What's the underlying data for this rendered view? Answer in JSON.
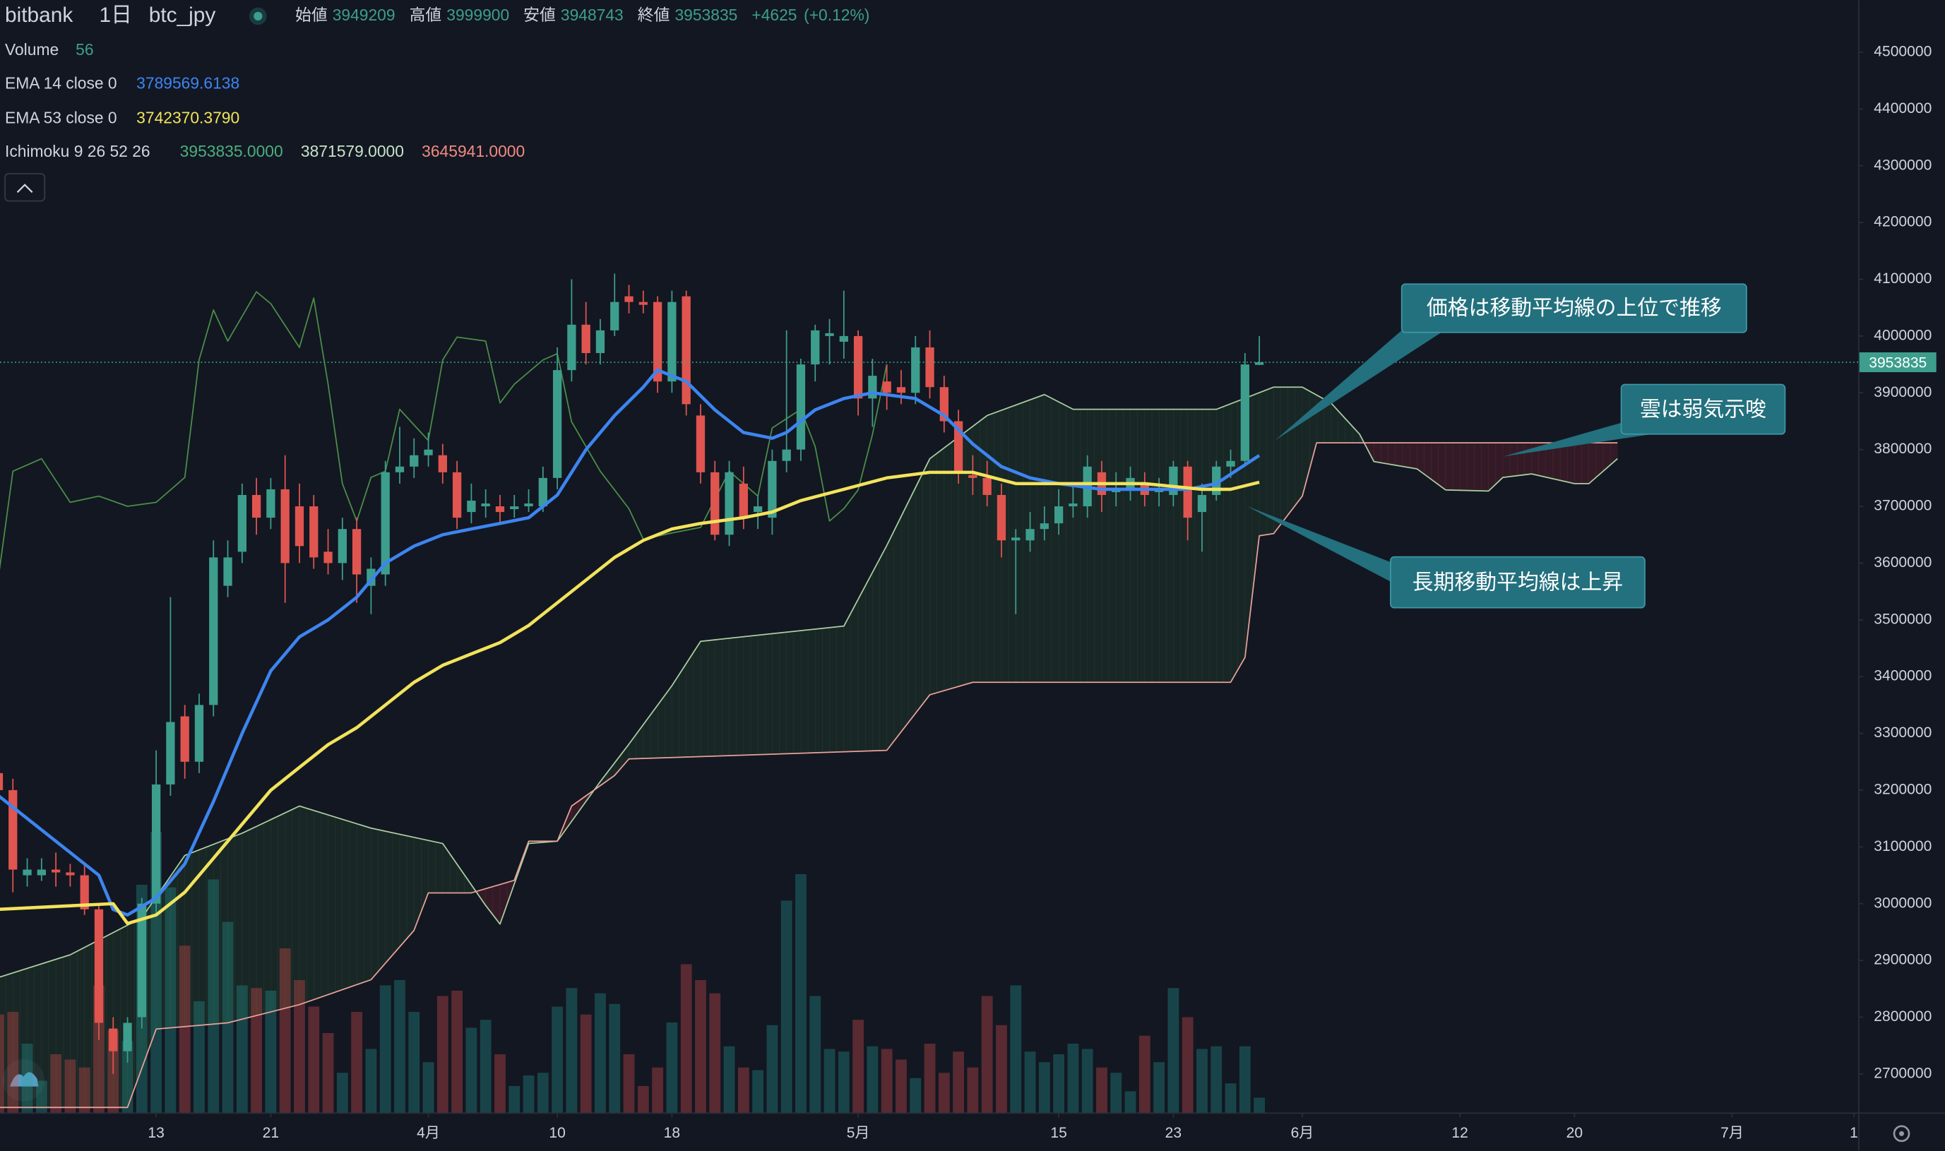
{
  "chart_data": {
    "type": "candlestick",
    "symbol": "bitbank",
    "interval": "1日",
    "pair": "btc_jpy",
    "ohlc_labels": [
      "始値",
      "高値",
      "安値",
      "終値"
    ],
    "change": {
      "value": 4625,
      "label": "+4625"
    },
    "change_percent": {
      "value": 0.12,
      "label": "(+0.12%)"
    },
    "volume_name": "Volume",
    "up_color": "#3d9e8d",
    "down_color": "#e0554f",
    "volume_colors": {
      "up": "rgba(38,166,154,0.32)",
      "down": "rgba(239,83,80,0.32)"
    },
    "xlim": [
      1.1,
      130.8
    ],
    "xticks": [
      {
        "value": 12,
        "label": "13"
      },
      {
        "value": 20,
        "label": "21"
      },
      {
        "value": 31,
        "label": "4月"
      },
      {
        "value": 40,
        "label": "10"
      },
      {
        "value": 48,
        "label": "18"
      },
      {
        "value": 61,
        "label": "5月"
      },
      {
        "value": 75,
        "label": "15"
      },
      {
        "value": 83,
        "label": "23"
      },
      {
        "value": 92,
        "label": "6月"
      },
      {
        "value": 103,
        "label": "12"
      },
      {
        "value": 111,
        "label": "20"
      },
      {
        "value": 122,
        "label": "7月"
      },
      {
        "value": 130.5,
        "label": "1"
      }
    ],
    "ylim": [
      2632000,
      4592000
    ],
    "yticks": [
      2700000,
      2800000,
      2900000,
      3000000,
      3100000,
      3200000,
      3300000,
      3400000,
      3500000,
      3600000,
      3700000,
      3800000,
      3900000,
      4000000,
      4100000,
      4200000,
      4300000,
      4400000,
      4500000
    ],
    "volume_ylim": [
      0,
      4200
    ],
    "grid": false,
    "x": [
      1,
      2,
      3,
      4,
      5,
      6,
      7,
      8,
      9,
      10,
      11,
      12,
      13,
      14,
      15,
      16,
      17,
      18,
      19,
      20,
      21,
      22,
      23,
      24,
      25,
      26,
      27,
      28,
      29,
      30,
      31,
      32,
      33,
      34,
      35,
      36,
      37,
      38,
      39,
      40,
      41,
      42,
      43,
      44,
      45,
      46,
      47,
      48,
      49,
      50,
      51,
      52,
      53,
      54,
      55,
      56,
      57,
      58,
      59,
      60,
      61,
      62,
      63,
      64,
      65,
      66,
      67,
      68,
      69,
      70,
      71,
      72,
      73,
      74,
      75,
      76,
      77,
      78,
      79,
      80,
      81,
      82,
      83,
      84,
      85,
      86,
      87,
      88,
      89
    ],
    "open": [
      3230000,
      3200000,
      3050000,
      3050000,
      3060000,
      3055000,
      3050000,
      2990000,
      2780000,
      2740000,
      2800000,
      3000000,
      3210000,
      3330000,
      3250000,
      3350000,
      3560000,
      3620000,
      3720000,
      3680000,
      3730000,
      3700000,
      3700000,
      3620000,
      3600000,
      3660000,
      3560000,
      3580000,
      3760000,
      3770000,
      3790000,
      3790000,
      3760000,
      3690000,
      3700000,
      3700000,
      3695000,
      3700000,
      3700000,
      3750000,
      3940000,
      4020000,
      3970000,
      4010000,
      4070000,
      4060000,
      4060000,
      3920000,
      4070000,
      3860000,
      3760000,
      3650000,
      3740000,
      3690000,
      3680000,
      3780000,
      3800000,
      3950000,
      4000000,
      3990000,
      4000000,
      3890000,
      3920000,
      3910000,
      3900000,
      3980000,
      3910000,
      3850000,
      3755000,
      3750000,
      3720000,
      3640000,
      3640000,
      3660000,
      3670000,
      3700000,
      3700000,
      3760000,
      3725000,
      3730000,
      3740000,
      3725000,
      3720000,
      3770000,
      3690000,
      3720000,
      3770000,
      3780000,
      3949209
    ],
    "high": [
      3250000,
      3220000,
      3080000,
      3080000,
      3090000,
      3070000,
      3070000,
      3000000,
      2800000,
      2800000,
      3010000,
      3270000,
      3540000,
      3350000,
      3370000,
      3640000,
      3640000,
      3740000,
      3750000,
      3750000,
      3790000,
      3740000,
      3720000,
      3660000,
      3680000,
      3680000,
      3610000,
      3780000,
      3840000,
      3820000,
      3830000,
      3810000,
      3780000,
      3740000,
      3730000,
      3720000,
      3720000,
      3730000,
      3770000,
      3980000,
      4100000,
      4060000,
      4030000,
      4110000,
      4090000,
      4080000,
      4070000,
      4080000,
      4080000,
      3880000,
      3780000,
      3780000,
      3770000,
      3720000,
      3800000,
      4010000,
      3960000,
      4020000,
      4030000,
      4080000,
      4010000,
      3960000,
      3950000,
      3940000,
      4000000,
      4010000,
      3930000,
      3870000,
      3790000,
      3780000,
      3740000,
      3660000,
      3690000,
      3700000,
      3730000,
      3740000,
      3790000,
      3780000,
      3760000,
      3770000,
      3760000,
      3750000,
      3780000,
      3780000,
      3740000,
      3780000,
      3800000,
      3970000,
      3999900
    ],
    "low": [
      3190000,
      3020000,
      3030000,
      3040000,
      3030000,
      3030000,
      2980000,
      2760000,
      2700000,
      2720000,
      2780000,
      2980000,
      3190000,
      3220000,
      3230000,
      3330000,
      3540000,
      3600000,
      3650000,
      3660000,
      3530000,
      3600000,
      3590000,
      3580000,
      3570000,
      3530000,
      3510000,
      3560000,
      3740000,
      3750000,
      3770000,
      3740000,
      3660000,
      3670000,
      3680000,
      3670000,
      3680000,
      3690000,
      3690000,
      3730000,
      3920000,
      3950000,
      3950000,
      4000000,
      4040000,
      4040000,
      3900000,
      3900000,
      3860000,
      3740000,
      3640000,
      3630000,
      3660000,
      3660000,
      3650000,
      3760000,
      3780000,
      3920000,
      3950000,
      3960000,
      3860000,
      3840000,
      3870000,
      3880000,
      3880000,
      3890000,
      3830000,
      3740000,
      3720000,
      3700000,
      3610000,
      3510000,
      3620000,
      3640000,
      3650000,
      3680000,
      3680000,
      3690000,
      3700000,
      3710000,
      3700000,
      3700000,
      3700000,
      3640000,
      3620000,
      3710000,
      3750000,
      3770000,
      3948743
    ],
    "close": [
      3200000,
      3060000,
      3060000,
      3060000,
      3055000,
      3050000,
      2990000,
      2790000,
      2740000,
      2790000,
      3000000,
      3210000,
      3320000,
      3250000,
      3350000,
      3610000,
      3610000,
      3720000,
      3680000,
      3730000,
      3600000,
      3630000,
      3610000,
      3600000,
      3660000,
      3580000,
      3590000,
      3760000,
      3770000,
      3790000,
      3800000,
      3760000,
      3680000,
      3710000,
      3705000,
      3690000,
      3700000,
      3705000,
      3750000,
      3940000,
      4020000,
      3970000,
      4010000,
      4060000,
      4060000,
      4055000,
      3920000,
      4060000,
      3880000,
      3760000,
      3650000,
      3760000,
      3680000,
      3700000,
      3780000,
      3800000,
      3950000,
      4010000,
      4005000,
      4000000,
      3890000,
      3930000,
      3900000,
      3900000,
      3980000,
      3910000,
      3850000,
      3760000,
      3750000,
      3720000,
      3640000,
      3645000,
      3660000,
      3670000,
      3700000,
      3705000,
      3770000,
      3720000,
      3730000,
      3750000,
      3720000,
      3730000,
      3770000,
      3680000,
      3720000,
      3770000,
      3780000,
      3950000,
      3953835
    ],
    "volume": [
      370,
      380,
      260,
      120,
      220,
      200,
      170,
      480,
      310,
      270,
      860,
      1060,
      850,
      630,
      420,
      880,
      720,
      480,
      470,
      460,
      620,
      500,
      400,
      300,
      150,
      380,
      240,
      480,
      500,
      380,
      190,
      440,
      460,
      320,
      350,
      220,
      100,
      140,
      150,
      400,
      470,
      370,
      450,
      410,
      220,
      100,
      170,
      340,
      560,
      500,
      450,
      250,
      170,
      160,
      330,
      800,
      900,
      440,
      240,
      230,
      350,
      250,
      240,
      200,
      130,
      260,
      150,
      230,
      170,
      440,
      330,
      480,
      230,
      190,
      220,
      260,
      240,
      170,
      150,
      80,
      290,
      190,
      470,
      360,
      240,
      250,
      110,
      250,
      56
    ],
    "lines": [
      {
        "name": "EMA 14 close 0",
        "color": "#3d85f0",
        "x": [
          1,
          4,
          8,
          9,
          10,
          12,
          14,
          16,
          18,
          20,
          22,
          24,
          26,
          28,
          30,
          32,
          34,
          36,
          38,
          40,
          42,
          44,
          46,
          47,
          49,
          51,
          53,
          55,
          56,
          58,
          60,
          62,
          65,
          67,
          69,
          71,
          73,
          75,
          78,
          81,
          84,
          86,
          89
        ],
        "values": [
          3190000,
          3130000,
          3050000,
          2990000,
          2980000,
          3010000,
          3070000,
          3180000,
          3300000,
          3410000,
          3470000,
          3500000,
          3540000,
          3600000,
          3630000,
          3650000,
          3660000,
          3670000,
          3680000,
          3720000,
          3800000,
          3860000,
          3910000,
          3940000,
          3920000,
          3870000,
          3830000,
          3820000,
          3830000,
          3870000,
          3890000,
          3900000,
          3890000,
          3860000,
          3810000,
          3770000,
          3750000,
          3740000,
          3730000,
          3730000,
          3730000,
          3740000,
          3789569.6138
        ]
      },
      {
        "name": "EMA 53 close 0",
        "color": "#f2e35c",
        "x": [
          1,
          9,
          10,
          12,
          14,
          16,
          18,
          20,
          22,
          24,
          26,
          28,
          30,
          32,
          34,
          36,
          38,
          40,
          42,
          44,
          46,
          48,
          50,
          53,
          55,
          57,
          60,
          63,
          66,
          69,
          72,
          75,
          78,
          81,
          85,
          87,
          89
        ],
        "values": [
          2990000,
          3000000,
          2965000,
          2980000,
          3020000,
          3080000,
          3140000,
          3200000,
          3240000,
          3280000,
          3310000,
          3350000,
          3390000,
          3420000,
          3440000,
          3460000,
          3490000,
          3530000,
          3570000,
          3610000,
          3640000,
          3660000,
          3670000,
          3680000,
          3690000,
          3710000,
          3730000,
          3750000,
          3760000,
          3760000,
          3740000,
          3740000,
          3740000,
          3740000,
          3730000,
          3730000,
          3742370.379
        ],
        "value_labels": [
          null,
          null,
          null,
          null,
          null,
          null,
          null,
          null,
          null,
          null,
          null,
          null,
          null,
          null,
          null,
          null,
          null,
          null,
          null,
          null,
          null,
          null,
          null,
          null,
          null,
          null,
          null,
          null,
          null,
          null,
          null,
          null,
          null,
          null,
          null,
          null,
          "3742370.3790"
        ]
      }
    ],
    "ichimoku": {
      "name": "Ichimoku 9 26 52 26",
      "readouts": [
        {
          "value": 3953835,
          "label": "3953835.0000",
          "color": "#4caf7d"
        },
        {
          "value": 3871579,
          "label": "3871579.0000",
          "color": "#c8e3c8"
        },
        {
          "value": 3645941,
          "label": "3645941.0000",
          "color": "#f28b82"
        }
      ],
      "lagging": {
        "color": "#4a8f47",
        "x": [
          1,
          2,
          4,
          6,
          8,
          10,
          12,
          14,
          15,
          16,
          17,
          19,
          20,
          22,
          23,
          24,
          25,
          26,
          27,
          28,
          29,
          31,
          32,
          33,
          35,
          36,
          37,
          39,
          40,
          41,
          43,
          45,
          46,
          48,
          50,
          52,
          54,
          55,
          57,
          58,
          59,
          60,
          61,
          62,
          63
        ],
        "values": [
          3576000,
          3762000,
          3784000,
          3707000,
          3718000,
          3700000,
          3707000,
          3751000,
          3958000,
          4046000,
          3991000,
          4078000,
          4057000,
          3980000,
          4067000,
          3915000,
          3740000,
          3674000,
          3751000,
          3762000,
          3871000,
          3816000,
          3958000,
          3998000,
          3991000,
          3882000,
          3915000,
          3958000,
          3969000,
          3849000,
          3762000,
          3696000,
          3642000,
          3653000,
          3663000,
          3762000,
          3718000,
          3838000,
          3871000,
          3805000,
          3674000,
          3696000,
          3729000,
          3827000,
          3950000
        ]
      },
      "span_a": {
        "color": "#a9cfa0",
        "x": [
          1,
          6,
          11,
          14,
          18,
          22,
          27,
          32,
          35,
          36,
          38,
          40,
          43,
          45,
          48,
          50,
          54,
          60,
          63,
          66,
          70,
          74,
          76,
          86,
          90,
          92,
          94,
          96,
          97,
          100,
          102,
          105,
          106,
          108,
          111,
          112,
          114
        ],
        "values": [
          2870000,
          2910000,
          2975000,
          3085000,
          3124000,
          3172000,
          3133000,
          3106000,
          2997000,
          2964000,
          3106000,
          3110000,
          3215000,
          3281000,
          3384000,
          3462000,
          3473000,
          3489000,
          3631000,
          3784000,
          3860000,
          3897000,
          3871000,
          3871000,
          3910000,
          3910000,
          3882000,
          3827000,
          3779000,
          3766000,
          3729000,
          3727000,
          3751000,
          3757000,
          3740000,
          3740000,
          3784000
        ]
      },
      "span_b": {
        "color": "#e8a39a",
        "x": [
          1,
          10,
          12,
          17,
          22,
          27,
          30,
          31,
          34,
          37,
          38,
          40,
          41,
          44,
          45,
          63,
          66,
          69,
          87,
          88,
          89,
          90,
          92,
          93,
          114
        ],
        "values": [
          2641000,
          2641000,
          2779000,
          2790000,
          2822000,
          2866000,
          2953000,
          3019000,
          3019000,
          3041000,
          3110000,
          3110000,
          3172000,
          3226000,
          3255000,
          3270000,
          3368000,
          3390000,
          3390000,
          3434000,
          3648000,
          3652000,
          3718000,
          3812000,
          3812000
        ]
      },
      "cloud_colors": {
        "up": "rgba(76,175,80,0.10)",
        "down": "rgba(242,54,69,0.14)"
      }
    },
    "annotations": [
      "価格は移動平均線の上位で推移",
      "雲は弱気示唆",
      "長期移動平均線は上昇"
    ]
  }
}
